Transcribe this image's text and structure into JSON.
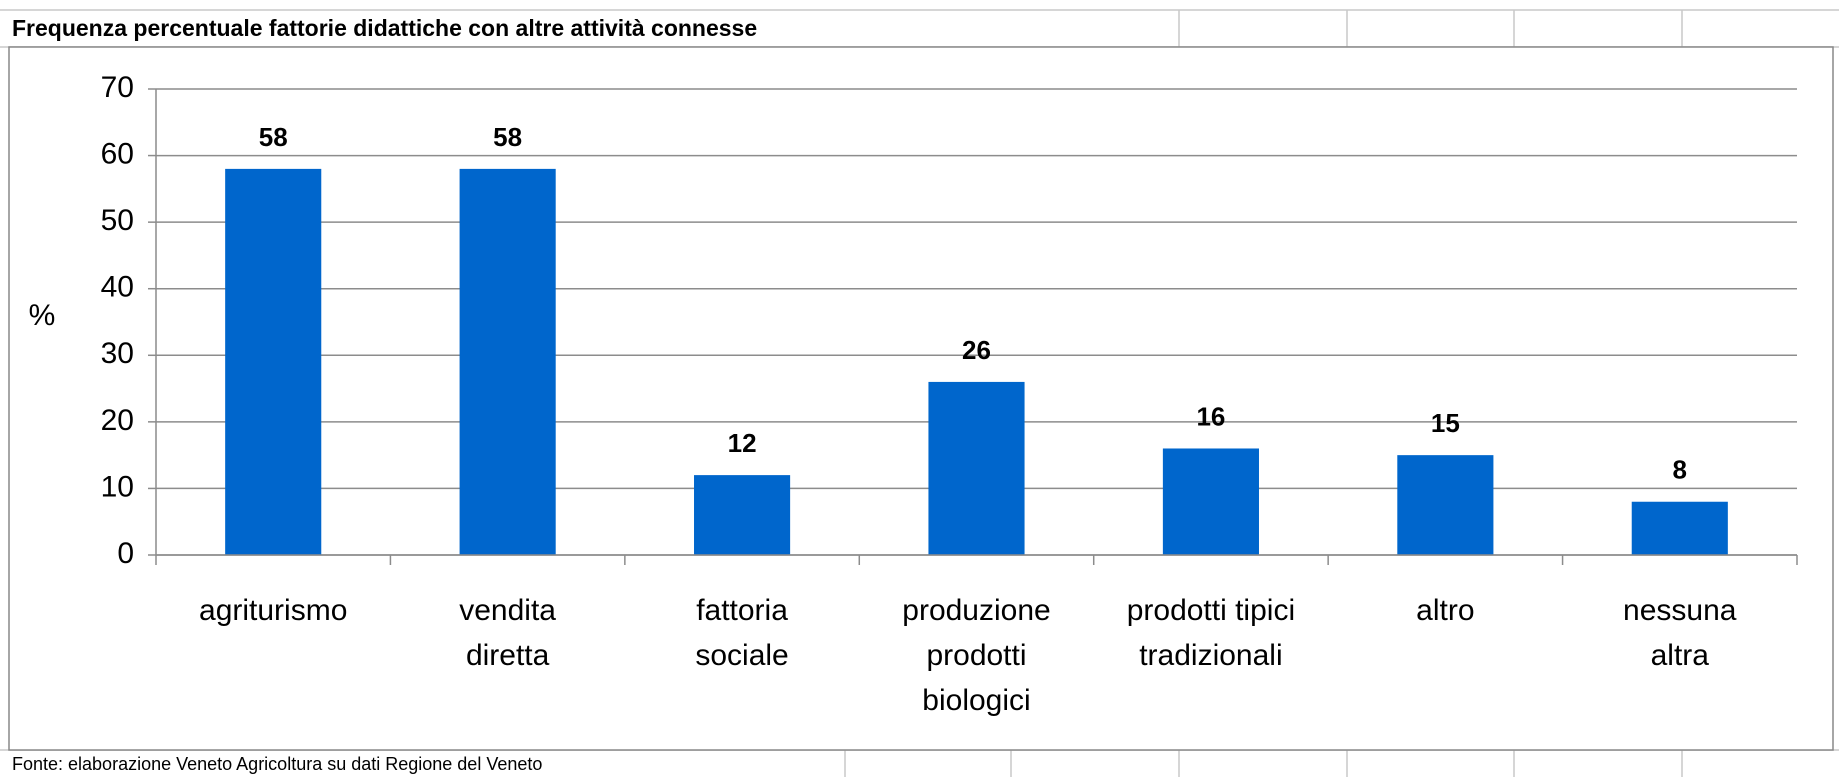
{
  "chart_data": {
    "type": "bar",
    "title": "Frequenza percentuale fattorie didattiche con altre attività connesse",
    "ylabel": "%",
    "source": "Fonte: elaborazione Veneto Agricoltura su dati Regione del Veneto",
    "categories": [
      "agriturismo",
      "vendita\ndiretta",
      "fattoria\nsociale",
      "produzione\nprodotti\nbiologici",
      "prodotti tipici\ntradizionali",
      "altro",
      "nessuna\naltra"
    ],
    "values": [
      58,
      58,
      12,
      26,
      16,
      15,
      8
    ],
    "color": "#0066cc",
    "ylim": [
      0,
      70
    ],
    "yticks": [
      0,
      10,
      20,
      30,
      40,
      50,
      60,
      70
    ],
    "grid": true
  }
}
